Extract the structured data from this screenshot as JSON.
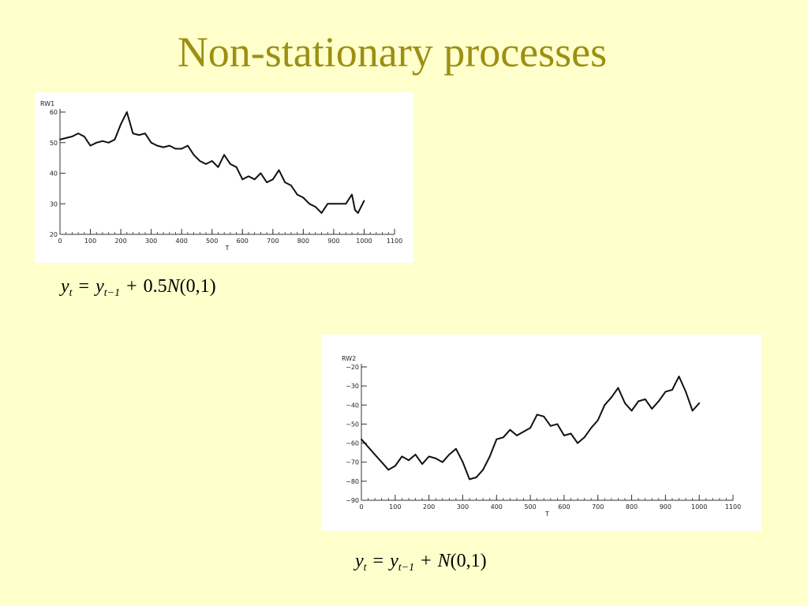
{
  "slide": {
    "title": "Non-stationary processes"
  },
  "chart_data": [
    {
      "type": "line",
      "ylabel": "RW1",
      "xlabel": "T",
      "xlim": [
        0,
        1100
      ],
      "ylim": [
        20,
        60
      ],
      "xticks": [
        "0",
        "100",
        "200",
        "300",
        "400",
        "500",
        "600",
        "700",
        "800",
        "900",
        "1000",
        "1100"
      ],
      "yticks": [
        "20",
        "30",
        "40",
        "50",
        "60"
      ],
      "grid": false,
      "color": "#111111",
      "series": [
        {
          "x": [
            0,
            20,
            40,
            60,
            80,
            100,
            120,
            140,
            160,
            180,
            200,
            210,
            220,
            240,
            260,
            280,
            300,
            320,
            340,
            360,
            380,
            400,
            420,
            440,
            460,
            480,
            500,
            520,
            540,
            560,
            580,
            600,
            620,
            640,
            660,
            680,
            700,
            720,
            740,
            760,
            780,
            800,
            820,
            840,
            860,
            880,
            900,
            920,
            940,
            960,
            970,
            980,
            990,
            1000
          ],
          "y": [
            51,
            51.5,
            52,
            53,
            52,
            49,
            50,
            50.5,
            50,
            51,
            56,
            58,
            60,
            53,
            52.5,
            53,
            50,
            49,
            48.5,
            49,
            48,
            48,
            49,
            46,
            44,
            43,
            44,
            42,
            46,
            43,
            42,
            38,
            39,
            38,
            40,
            37,
            38,
            41,
            37,
            36,
            33,
            32,
            30,
            29,
            27,
            30,
            30,
            30,
            30,
            33,
            28,
            27,
            29,
            31
          ]
        }
      ]
    },
    {
      "type": "line",
      "ylabel": "RW2",
      "xlabel": "T",
      "xlim": [
        0,
        1100
      ],
      "ylim": [
        -90,
        -20
      ],
      "xticks": [
        "0",
        "100",
        "200",
        "300",
        "400",
        "500",
        "600",
        "700",
        "800",
        "900",
        "1000",
        "1100"
      ],
      "yticks": [
        "-20",
        "-30",
        "-40",
        "-50",
        "-60",
        "-70",
        "-80",
        "-90"
      ],
      "grid": false,
      "color": "#111111",
      "series": [
        {
          "x": [
            0,
            20,
            40,
            60,
            80,
            100,
            120,
            140,
            160,
            180,
            200,
            220,
            240,
            260,
            280,
            300,
            320,
            340,
            360,
            380,
            400,
            420,
            440,
            460,
            480,
            500,
            520,
            540,
            560,
            580,
            600,
            620,
            640,
            660,
            680,
            700,
            720,
            740,
            760,
            780,
            800,
            820,
            840,
            860,
            880,
            900,
            920,
            940,
            960,
            980,
            1000
          ],
          "y": [
            -58,
            -62,
            -66,
            -70,
            -74,
            -72,
            -67,
            -69,
            -66,
            -71,
            -67,
            -68,
            -70,
            -66,
            -63,
            -70,
            -79,
            -78,
            -74,
            -67,
            -58,
            -57,
            -53,
            -56,
            -54,
            -52,
            -45,
            -46,
            -51,
            -50,
            -56,
            -55,
            -60,
            -57,
            -52,
            -48,
            -40,
            -36,
            -31,
            -39,
            -43,
            -38,
            -37,
            -42,
            -38,
            -33,
            -32,
            -25,
            -33,
            -43,
            -39
          ]
        }
      ]
    }
  ],
  "formulas": {
    "f1": {
      "y": "y",
      "t": "t",
      "eq": "=",
      "tm1": "t−1",
      "plus": "+",
      "coef": "0.5",
      "N": "N",
      "args": "(0,1)"
    },
    "f2": {
      "y": "y",
      "t": "t",
      "eq": "=",
      "tm1": "t−1",
      "plus": "+",
      "N": "N",
      "args": "(0,1)"
    }
  }
}
